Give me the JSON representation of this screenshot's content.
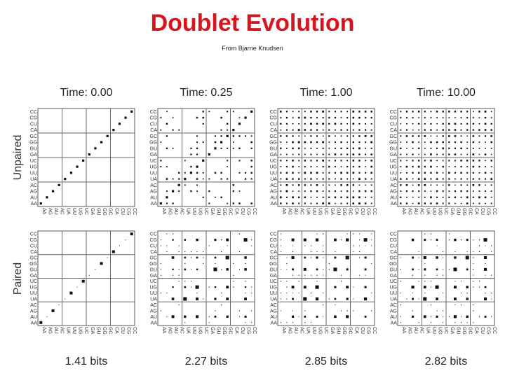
{
  "title": "Doublet Evolution",
  "subtitle": "From Bjarne Knudsen",
  "row_labels": [
    "Unpaired",
    "Paired"
  ],
  "times": [
    "Time: 0.00",
    "Time: 0.25",
    "Time: 1.00",
    "Time: 10.00"
  ],
  "bits": [
    "1.41 bits",
    "2.27 bits",
    "2.85 bits",
    "2.82 bits"
  ],
  "unpaired_axis": [
    "CC",
    "CG",
    "CU",
    "CA",
    "GC",
    "GG",
    "GU",
    "GA",
    "UC",
    "UG",
    "UU",
    "UA",
    "AC",
    "AG",
    "AU",
    "AA"
  ],
  "paired_axis": [
    "CC",
    "CG",
    "CU",
    "CA",
    "GC",
    "GG",
    "GU",
    "GA",
    "UC",
    "UG",
    "UU",
    "UA",
    "AC",
    "AG",
    "AU",
    "AA"
  ],
  "unpaired_x_axis": [
    "AA",
    "AG",
    "AU",
    "AC",
    "UA",
    "UU",
    "UG",
    "UC",
    "GA",
    "GU",
    "GG",
    "GC",
    "CA",
    "CU",
    "CG",
    "CC"
  ],
  "paired_x_axis": [
    "AA",
    "AG",
    "AU",
    "AC",
    "UA",
    "UU",
    "UG",
    "UC",
    "GA",
    "GU",
    "GG",
    "GC",
    "CA",
    "CU",
    "CG",
    "CC"
  ]
}
